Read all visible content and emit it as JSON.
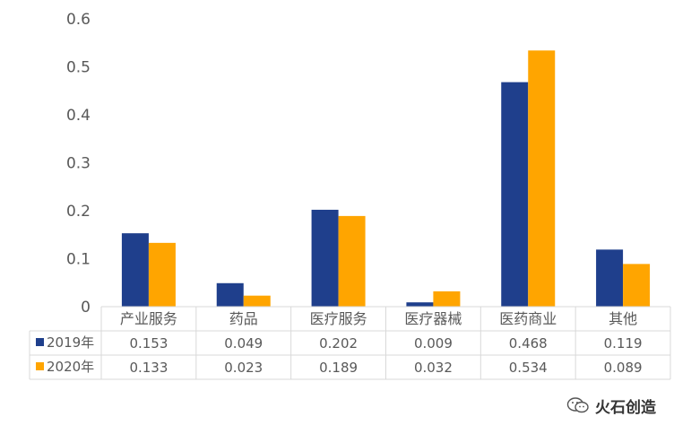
{
  "chart_data": {
    "type": "bar",
    "categories": [
      "产业服务",
      "药品",
      "医疗服务",
      "医疗器械",
      "医药商业",
      "其他"
    ],
    "series": [
      {
        "name": "2019年",
        "values": [
          0.153,
          0.049,
          0.202,
          0.009,
          0.468,
          0.119
        ],
        "color": "#1F3F8C"
      },
      {
        "name": "2020年",
        "values": [
          0.133,
          0.023,
          0.189,
          0.032,
          0.534,
          0.089
        ],
        "color": "#FFA500"
      }
    ],
    "table_values": {
      "2019年": [
        "0.153",
        "0.049",
        "0.202",
        "0.009",
        "0.468",
        "0.119"
      ],
      "2020年": [
        "0.133",
        "0.023",
        "0.189",
        "0.032",
        "0.534",
        "0.089"
      ]
    },
    "yticks": [
      "0",
      "0.1",
      "0.2",
      "0.3",
      "0.4",
      "0.5",
      "0.6"
    ],
    "ylim": [
      0,
      0.6
    ],
    "grid": false,
    "legend": "data-table-left"
  },
  "watermark": {
    "text": "火石创造",
    "icon": "wechat-icon"
  }
}
